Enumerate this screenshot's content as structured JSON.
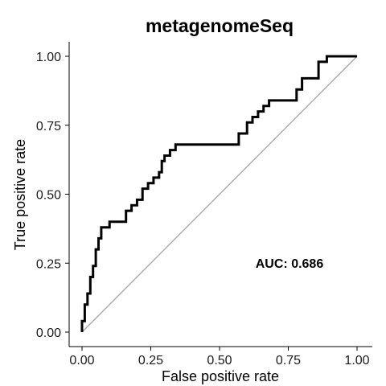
{
  "chart_data": {
    "type": "line",
    "title": "metagenomeSeq",
    "xlabel": "False positive rate",
    "ylabel": "True positive rate",
    "xlim": [
      0,
      1
    ],
    "ylim": [
      0,
      1
    ],
    "xticks": [
      "0.00",
      "0.25",
      "0.50",
      "0.75",
      "1.00"
    ],
    "yticks": [
      "0.00",
      "0.25",
      "0.50",
      "0.75",
      "1.00"
    ],
    "grid": false,
    "annotation": "AUC: 0.686",
    "colors": {
      "roc": "#000000",
      "reference": "#a6a6a6"
    },
    "series": [
      {
        "x": [
          0.0,
          0.0,
          0.01,
          0.01,
          0.02,
          0.02,
          0.03,
          0.03,
          0.04,
          0.04,
          0.05,
          0.05,
          0.06,
          0.06,
          0.07,
          0.07,
          0.1,
          0.1,
          0.16,
          0.16,
          0.18,
          0.18,
          0.2,
          0.2,
          0.22,
          0.22,
          0.24,
          0.24,
          0.26,
          0.26,
          0.28,
          0.28,
          0.29,
          0.29,
          0.3,
          0.3,
          0.32,
          0.32,
          0.34,
          0.34,
          0.38,
          0.38,
          0.57,
          0.57,
          0.6,
          0.6,
          0.62,
          0.62,
          0.64,
          0.64,
          0.66,
          0.66,
          0.68,
          0.68,
          0.7,
          0.7,
          0.72,
          0.72,
          0.78,
          0.78,
          0.8,
          0.8,
          0.82,
          0.82,
          0.86,
          0.86,
          0.89,
          0.89,
          0.96,
          1.0
        ],
        "y": [
          0.0,
          0.04,
          0.04,
          0.1,
          0.1,
          0.14,
          0.14,
          0.2,
          0.2,
          0.24,
          0.24,
          0.3,
          0.3,
          0.34,
          0.34,
          0.38,
          0.38,
          0.4,
          0.4,
          0.44,
          0.44,
          0.46,
          0.46,
          0.48,
          0.48,
          0.52,
          0.52,
          0.54,
          0.54,
          0.56,
          0.56,
          0.58,
          0.58,
          0.62,
          0.62,
          0.64,
          0.64,
          0.66,
          0.66,
          0.68,
          0.68,
          0.68,
          0.68,
          0.72,
          0.72,
          0.76,
          0.76,
          0.78,
          0.78,
          0.8,
          0.8,
          0.82,
          0.82,
          0.84,
          0.84,
          0.84,
          0.84,
          0.84,
          0.84,
          0.88,
          0.88,
          0.92,
          0.92,
          0.92,
          0.92,
          0.98,
          0.98,
          1.0,
          1.0,
          1.0
        ]
      }
    ]
  }
}
